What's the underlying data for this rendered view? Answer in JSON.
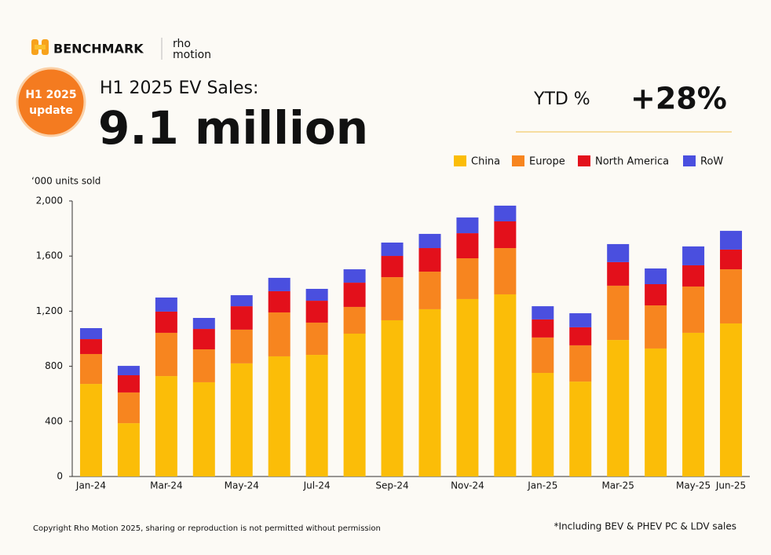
{
  "header": {
    "logo": "BENCHMARK",
    "partner_logo": [
      "rho",
      "motion"
    ],
    "badge": [
      "H1 2025",
      "update"
    ],
    "headline": "H1 2025 EV Sales:",
    "big_number": "9.1 million",
    "ytd_label": "YTD %",
    "ytd_value": "+28%"
  },
  "footer": {
    "copyright": "Copyright Rho Motion 2025, sharing or reproduction is not permitted without permission",
    "note": "*Including BEV & PHEV PC & LDV sales"
  },
  "chart_data": {
    "type": "stacked_bar",
    "y_label": "‘000 units sold",
    "categories": [
      "Jan-24",
      null,
      "Mar-24",
      null,
      "May-24",
      null,
      "Jul-24",
      null,
      "Sep-24",
      null,
      "Nov-24",
      null,
      "Jan-25",
      null,
      "Mar-25",
      null,
      "May-25",
      "Jun-25"
    ],
    "series": [
      {
        "name": "China",
        "color": "#fbbd08",
        "values": [
          672,
          387,
          729,
          684,
          821,
          872,
          883,
          1037,
          1134,
          1214,
          1288,
          1322,
          752,
          689,
          991,
          929,
          1043,
          1111
        ]
      },
      {
        "name": "Europe",
        "color": "#f7851f",
        "values": [
          217,
          223,
          314,
          239,
          245,
          319,
          234,
          194,
          313,
          273,
          296,
          336,
          257,
          263,
          394,
          313,
          336,
          393
        ]
      },
      {
        "name": "North America",
        "color": "#e3101b",
        "values": [
          108,
          125,
          154,
          148,
          170,
          154,
          159,
          176,
          154,
          171,
          182,
          194,
          131,
          131,
          171,
          154,
          154,
          143
        ]
      },
      {
        "name": "RoW",
        "color": "#4a4fdf",
        "values": [
          80,
          68,
          102,
          80,
          80,
          97,
          86,
          97,
          97,
          103,
          114,
          114,
          96,
          102,
          131,
          114,
          137,
          136
        ]
      }
    ],
    "ylim": [
      0,
      2000
    ],
    "yticks": [
      0,
      400,
      800,
      {
        "value": 1200,
        "label": "1,200"
      },
      {
        "value": 1600,
        "label": "1,600"
      },
      {
        "value": 2000,
        "label": "2,000"
      }
    ],
    "legend": "top-right"
  }
}
